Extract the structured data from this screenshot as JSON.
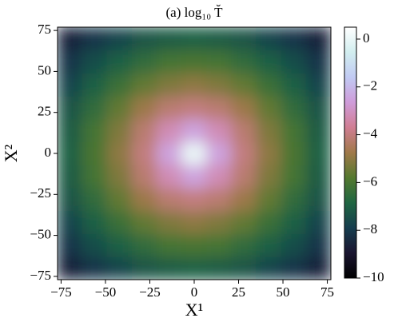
{
  "chart_data": {
    "type": "heatmap",
    "title": "(a)  log₁₀ T̆",
    "xlabel": "X¹",
    "ylabel": "X²",
    "x": [
      -70,
      -56,
      -42,
      -28,
      -14,
      0,
      14,
      28,
      42,
      56,
      70
    ],
    "y": [
      -70,
      -56,
      -42,
      -28,
      -14,
      0,
      14,
      28,
      42,
      56,
      70
    ],
    "z": [
      [
        -8.6,
        -8.1,
        -7.7,
        -7.3,
        -7.1,
        -7,
        -7.1,
        -7.3,
        -7.7,
        -8.1,
        -8.6
      ],
      [
        -8.1,
        -7.5,
        -7,
        -6.5,
        -6.1,
        -6,
        -6.1,
        -6.5,
        -7,
        -7.5,
        -8.1
      ],
      [
        -7.7,
        -7,
        -6.3,
        -5.6,
        -5.2,
        -5,
        -5.2,
        -5.6,
        -6.3,
        -7,
        -7.7
      ],
      [
        -7.3,
        -6.5,
        -5.6,
        -4.8,
        -4.2,
        -4,
        -4.2,
        -4.8,
        -5.6,
        -6.5,
        -7.3
      ],
      [
        -7.1,
        -6.1,
        -5.2,
        -4.2,
        -3.2,
        -2.5,
        -3.2,
        -4.2,
        -5.2,
        -6.1,
        -7.1
      ],
      [
        -7,
        -6,
        -5,
        -4,
        -2.5,
        0,
        -2.5,
        -4,
        -5,
        -6,
        -7
      ],
      [
        -7.1,
        -6.1,
        -5.2,
        -4.2,
        -3.2,
        -2.5,
        -3.2,
        -4.2,
        -5.2,
        -6.1,
        -7.1
      ],
      [
        -7.3,
        -6.5,
        -5.6,
        -4.8,
        -4.2,
        -4,
        -4.2,
        -4.8,
        -5.6,
        -6.5,
        -7.3
      ],
      [
        -7.7,
        -7,
        -6.3,
        -5.6,
        -5.2,
        -5,
        -5.2,
        -5.6,
        -6.3,
        -7,
        -7.7
      ],
      [
        -8.1,
        -7.5,
        -7,
        -6.5,
        -6.1,
        -6,
        -6.1,
        -6.5,
        -7,
        -7.5,
        -8.1
      ],
      [
        -8.6,
        -8.1,
        -7.7,
        -7.3,
        -7.1,
        -7,
        -7.1,
        -7.3,
        -7.7,
        -8.1,
        -8.6
      ]
    ],
    "xlim": [
      -77,
      77
    ],
    "ylim": [
      -77,
      77
    ],
    "xticks": [
      {
        "value": -75,
        "label": "−75"
      },
      {
        "value": -50,
        "label": "−50"
      },
      {
        "value": -25,
        "label": "−25"
      },
      0,
      25,
      50,
      75
    ],
    "yticks": [
      {
        "value": -75,
        "label": "−75"
      },
      {
        "value": -50,
        "label": "−50"
      },
      {
        "value": -25,
        "label": "−25"
      },
      0,
      25,
      50,
      75
    ],
    "zlim": [
      -10,
      0.5
    ],
    "zticks": [
      {
        "value": -10,
        "label": "−10"
      },
      {
        "value": -8,
        "label": "−8"
      },
      {
        "value": -6,
        "label": "−6"
      },
      {
        "value": -4,
        "label": "−4"
      },
      {
        "value": -2,
        "label": "−2"
      },
      0
    ],
    "colormap": [
      "#000000",
      "#1a1530",
      "#163d4e",
      "#1f6642",
      "#54792f",
      "#a07949",
      "#d07e93",
      "#cf9cda",
      "#c1caf3",
      "#d2eeef",
      "#ffffff"
    ]
  }
}
